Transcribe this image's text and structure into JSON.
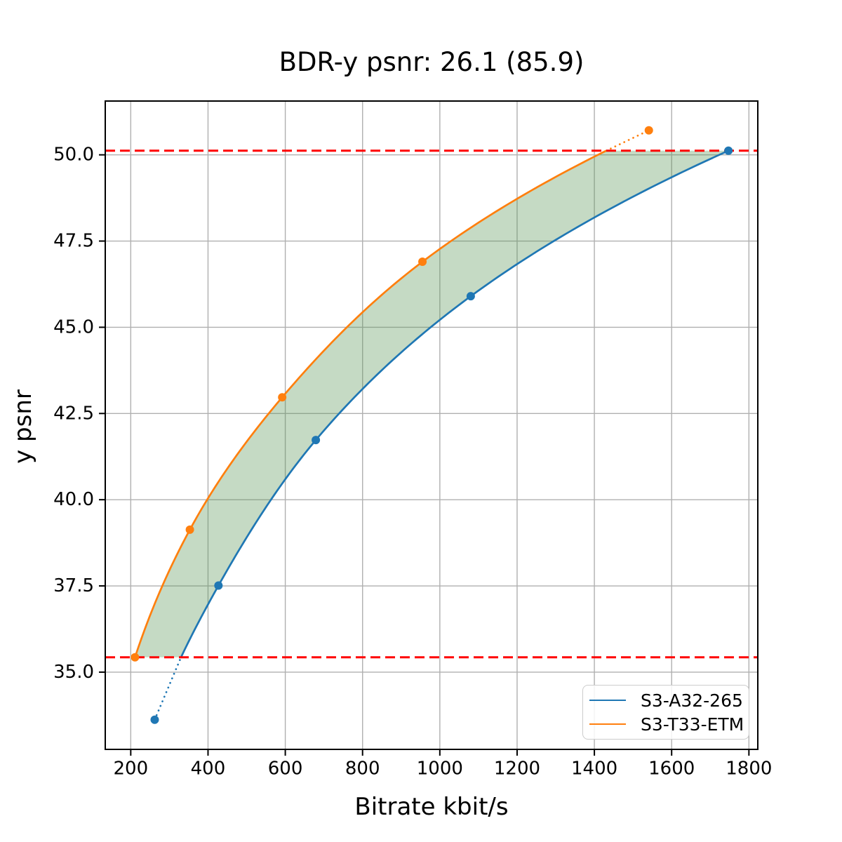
{
  "chart_data": {
    "type": "line",
    "title": "BDR-y psnr: 26.1 (85.9)",
    "bdr_value": "26.1",
    "bdr_value_alt": "85.9",
    "xlabel": "Bitrate kbit/s",
    "ylabel": "y psnr",
    "xlim": [
      134,
      1823
    ],
    "ylim": [
      32.76,
      51.56
    ],
    "xticks": [
      200,
      400,
      600,
      800,
      1000,
      1200,
      1400,
      1600,
      1800
    ],
    "yticks": [
      35.0,
      37.5,
      40.0,
      42.5,
      45.0,
      47.5,
      50.0
    ],
    "grid": true,
    "grid_color": "#b0b0b0",
    "legend_position": "lower right",
    "series": [
      {
        "name": "S3-A32-265",
        "color": "#1f77b4",
        "points": [
          [
            262,
            33.62
          ],
          [
            427,
            37.51
          ],
          [
            679,
            41.73
          ],
          [
            1080,
            45.9
          ],
          [
            1747,
            50.12
          ]
        ]
      },
      {
        "name": "S3-T33-ETM",
        "color": "#ff7f0e",
        "points": [
          [
            211,
            35.43
          ],
          [
            353,
            39.13
          ],
          [
            592,
            42.97
          ],
          [
            955,
            46.9
          ],
          [
            1541,
            50.71
          ]
        ]
      }
    ],
    "psnr_overlap": [
      35.43,
      50.12
    ],
    "overlap_line_color": "#ff0000",
    "overlap_line_style": "dashed",
    "fill_between_color": "rgba(90,150,85,0.35)"
  }
}
